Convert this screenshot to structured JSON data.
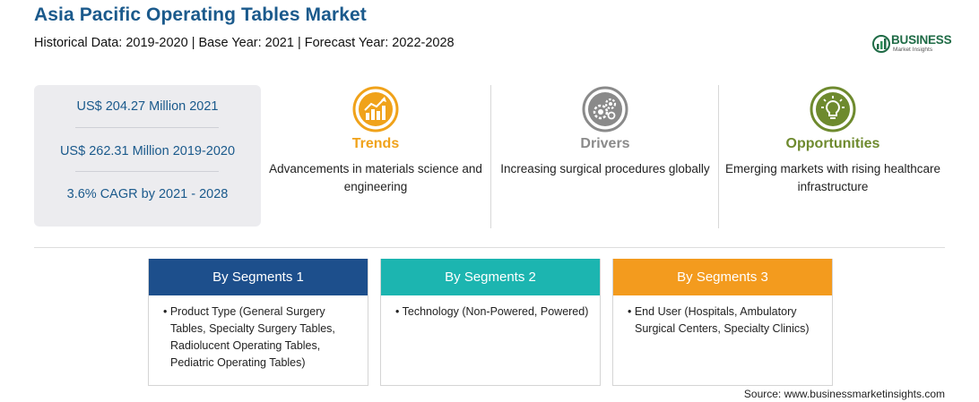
{
  "header": {
    "title": "Asia Pacific Operating Tables Market",
    "subtitle": "Historical Data: 2019-2020 | Base Year: 2021 | Forecast Year: 2022-2028"
  },
  "logo": {
    "word": "BUSINESS",
    "sub": "Market Insights"
  },
  "stats": [
    "US$ 204.27 Million 2021",
    "US$ 262.31 Million 2019-2020",
    "3.6% CAGR by 2021 - 2028"
  ],
  "features": [
    {
      "title": "Trends",
      "text": "Advancements in materials science and engineering",
      "color": "#f0a21a",
      "icon": "trend-chart-icon"
    },
    {
      "title": "Drivers",
      "text": "Increasing surgical procedures globally",
      "color": "#8a8a8a",
      "icon": "gears-icon"
    },
    {
      "title": "Opportunities",
      "text": "Emerging markets with rising healthcare infrastructure",
      "color": "#6e8a2e",
      "icon": "lightbulb-icon"
    }
  ],
  "segments": [
    {
      "title": "By Segments 1",
      "color": "#1d4f8c",
      "text": "• Product Type (General Surgery Tables, Specialty Surgery Tables, Radiolucent Operating Tables, Pediatric Operating Tables)"
    },
    {
      "title": "By Segments 2",
      "color": "#1cb5b0",
      "text": "• Technology (Non-Powered, Powered)"
    },
    {
      "title": "By Segments 3",
      "color": "#f39b1e",
      "text": "• End User (Hospitals, Ambulatory Surgical Centers, Specialty Clinics)"
    }
  ],
  "source": "Source: www.businessmarketinsights.com"
}
